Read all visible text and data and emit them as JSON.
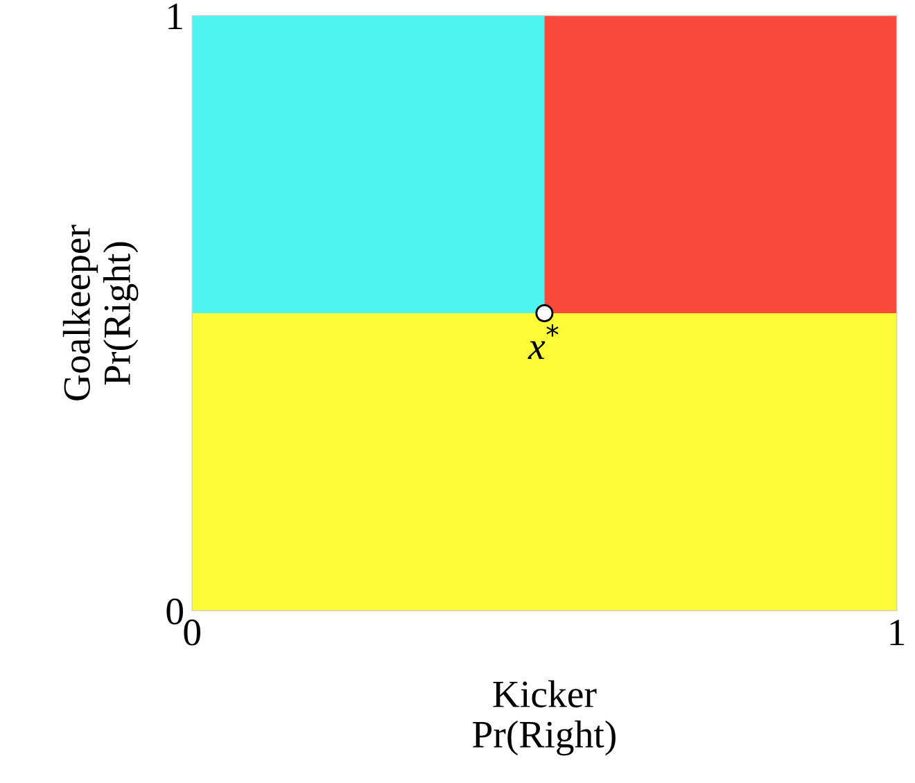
{
  "chart_data": {
    "type": "scatter",
    "xlabel": "Kicker\nPr(Right)",
    "ylabel": "Goalkeeper\nPr(Right)",
    "x": [
      0.5
    ],
    "values": [
      0.5
    ],
    "color": "#ffffff",
    "marker": "circle",
    "xlim": [
      0,
      1
    ],
    "ylim": [
      0,
      1
    ],
    "xticks": [
      0,
      1
    ],
    "yticks": [
      0,
      1
    ],
    "grid": false,
    "bands": [
      {
        "axis": "x",
        "from": 0,
        "to": 0.5,
        "color": "#4ef3f0"
      },
      {
        "axis": "x",
        "from": 0.5,
        "to": 1,
        "color": "#fa4a3c"
      },
      {
        "axis": "y",
        "from": 0,
        "to": 0.5,
        "color": "#fbfb3a"
      }
    ],
    "annotations": [
      {
        "text": "x$^{*}$",
        "x": 0.5,
        "y": 0.5
      }
    ]
  }
}
